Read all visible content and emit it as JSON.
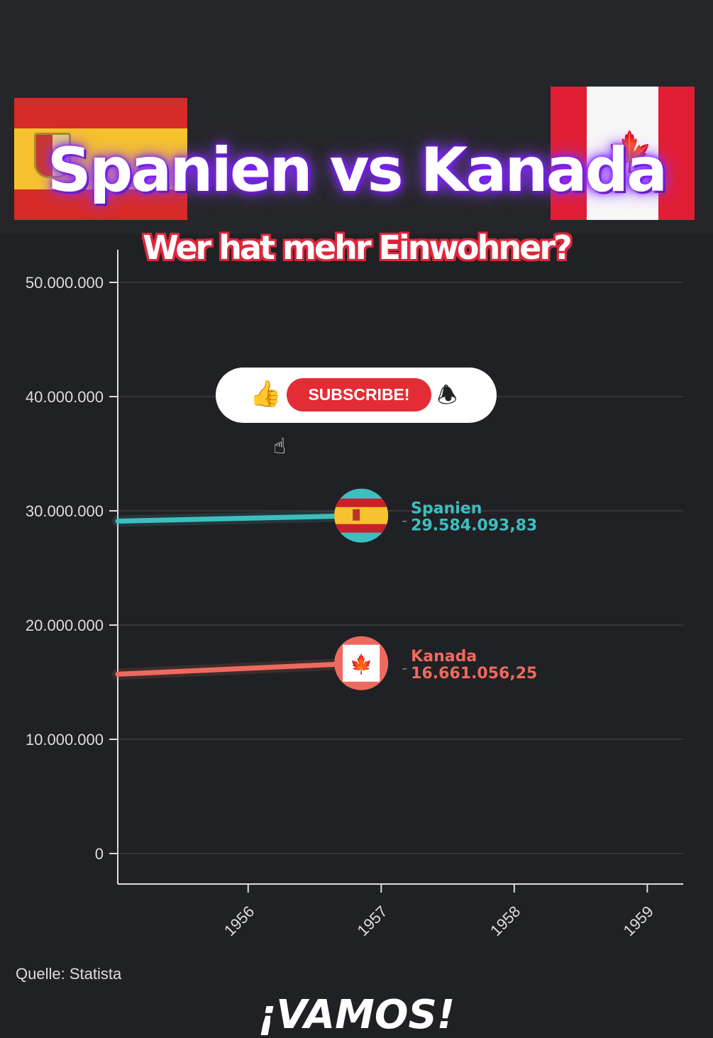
{
  "header": {
    "title": "Spanien vs Kanada",
    "subtitle": "Wer hat mehr Einwohner?"
  },
  "subscribe": {
    "label": "SUBSCRIBE!",
    "icons": [
      "thumbs-up-icon",
      "bell-icon",
      "hand-cursor-icon"
    ]
  },
  "footer": {
    "source": "Quelle: Statista",
    "brand": "¡VAMOS!"
  },
  "chart_data": {
    "type": "line",
    "title": "",
    "xlabel": "",
    "ylabel": "",
    "x_ticks": [
      "1956",
      "1957",
      "1958",
      "1959"
    ],
    "y_ticks": [
      "0",
      "10.000.000",
      "20.000.000",
      "30.000.000",
      "40.000.000",
      "50.000.000"
    ],
    "xlim": [
      1955.02,
      1959.27
    ],
    "ylim": [
      0,
      50000000
    ],
    "grid": true,
    "series": [
      {
        "name": "Spanien",
        "color": "#3dbfc0",
        "value_label": "29.584.093,83",
        "points": [
          [
            1955.02,
            29100000
          ],
          [
            1956.85,
            29584093.83
          ]
        ],
        "flag": "spain-flag-icon"
      },
      {
        "name": "Kanada",
        "color": "#ee6a5f",
        "value_label": "16.661.056,25",
        "points": [
          [
            1955.02,
            15700000
          ],
          [
            1956.85,
            16661056.25
          ]
        ],
        "flag": "canada-flag-icon"
      }
    ]
  }
}
